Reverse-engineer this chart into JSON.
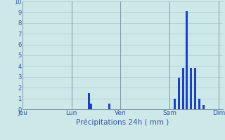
{
  "xlabel": "Précipitations 24h ( mm )",
  "background_color": "#cce8e8",
  "grid_color": "#aacccc",
  "bar_color": "#1a3fcc",
  "tick_color": "#3355aa",
  "label_color": "#3355aa",
  "vline_color": "#778899",
  "ylim": [
    0,
    10
  ],
  "yticks": [
    0,
    1,
    2,
    3,
    4,
    5,
    6,
    7,
    8,
    9,
    10
  ],
  "day_labels": [
    "Jeu",
    "Lun",
    "Ven",
    "Sam",
    "Dim"
  ],
  "day_positions": [
    0,
    24,
    48,
    72,
    96
  ],
  "total_bars": 100,
  "bar_values": [
    0,
    0,
    0,
    0,
    0,
    0,
    0,
    0,
    0,
    0,
    0,
    0,
    0,
    0,
    0,
    0,
    0,
    0,
    0,
    0,
    0,
    0,
    0,
    0,
    0,
    0,
    0,
    0,
    0,
    0,
    0,
    0,
    1.5,
    0.55,
    0,
    0,
    0,
    0,
    0,
    0,
    0,
    0,
    0.55,
    0,
    0,
    0,
    0,
    0,
    0,
    0,
    0,
    0,
    0,
    0,
    0,
    0,
    0,
    0,
    0,
    0,
    0,
    0,
    0,
    0,
    0,
    0,
    0,
    0,
    0,
    0,
    0,
    0,
    0,
    0,
    1.0,
    0,
    2.9,
    0,
    3.8,
    0,
    9.1,
    0,
    3.8,
    0,
    3.8,
    0,
    1.0,
    0,
    0.4,
    0,
    0,
    0,
    0,
    0,
    0,
    0,
    0,
    0
  ]
}
